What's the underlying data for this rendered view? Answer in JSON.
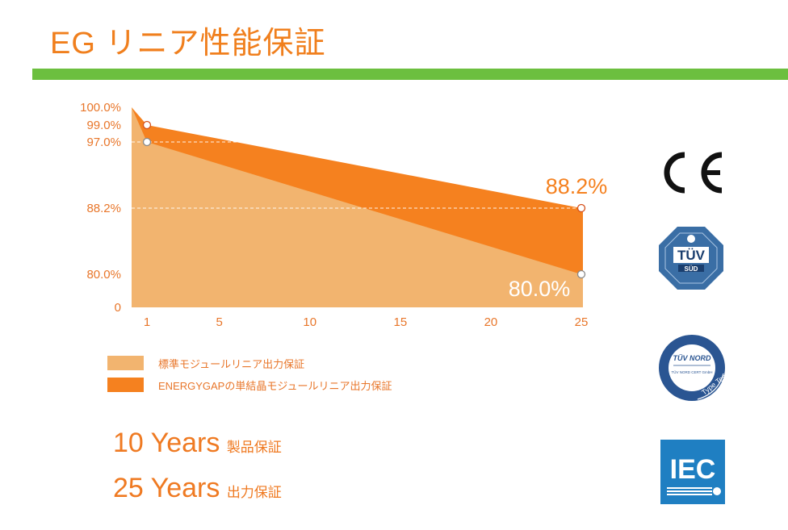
{
  "page": {
    "title": "EG リニア性能保証"
  },
  "colors": {
    "title_orange": "#f07f1d",
    "green_bar": "#6cbf3f",
    "standard_fill": "#f2b46f",
    "energygap_fill": "#f5811f",
    "label_orange": "#e8762a"
  },
  "chart_data": {
    "type": "area",
    "x_ticks": [
      "1",
      "5",
      "10",
      "15",
      "20",
      "25"
    ],
    "y_ticks": [
      "100.0%",
      "99.0%",
      "97.0%",
      "88.2%",
      "80.0%",
      "0"
    ],
    "series": [
      {
        "name": "標準モジュールリニア出力保証",
        "x": [
          0.5,
          1,
          25
        ],
        "values": [
          100.0,
          97.0,
          80.0
        ],
        "color": "#f2b46f"
      },
      {
        "name": "ENERGYGAPの単結晶モジュールリニア出力保証",
        "x": [
          0.5,
          1,
          25
        ],
        "values": [
          100.0,
          99.0,
          88.2
        ],
        "color": "#f5811f"
      }
    ],
    "annotations": {
      "energygap_end": "88.2%",
      "standard_end": "80.0%"
    },
    "grid": true,
    "legend_position": "bottom-left"
  },
  "warranty": [
    {
      "years": "10 Years",
      "label": "製品保証"
    },
    {
      "years": "25 Years",
      "label": "出力保証"
    }
  ],
  "certifications": [
    {
      "icon": "ce-mark-icon",
      "text": "CE"
    },
    {
      "icon": "tuv-sud-logo-icon",
      "text": "TÜV SÜD"
    },
    {
      "icon": "tuv-nord-logo-icon",
      "text": "TÜV NORD"
    },
    {
      "icon": "iec-logo-icon",
      "text": "IEC"
    }
  ]
}
